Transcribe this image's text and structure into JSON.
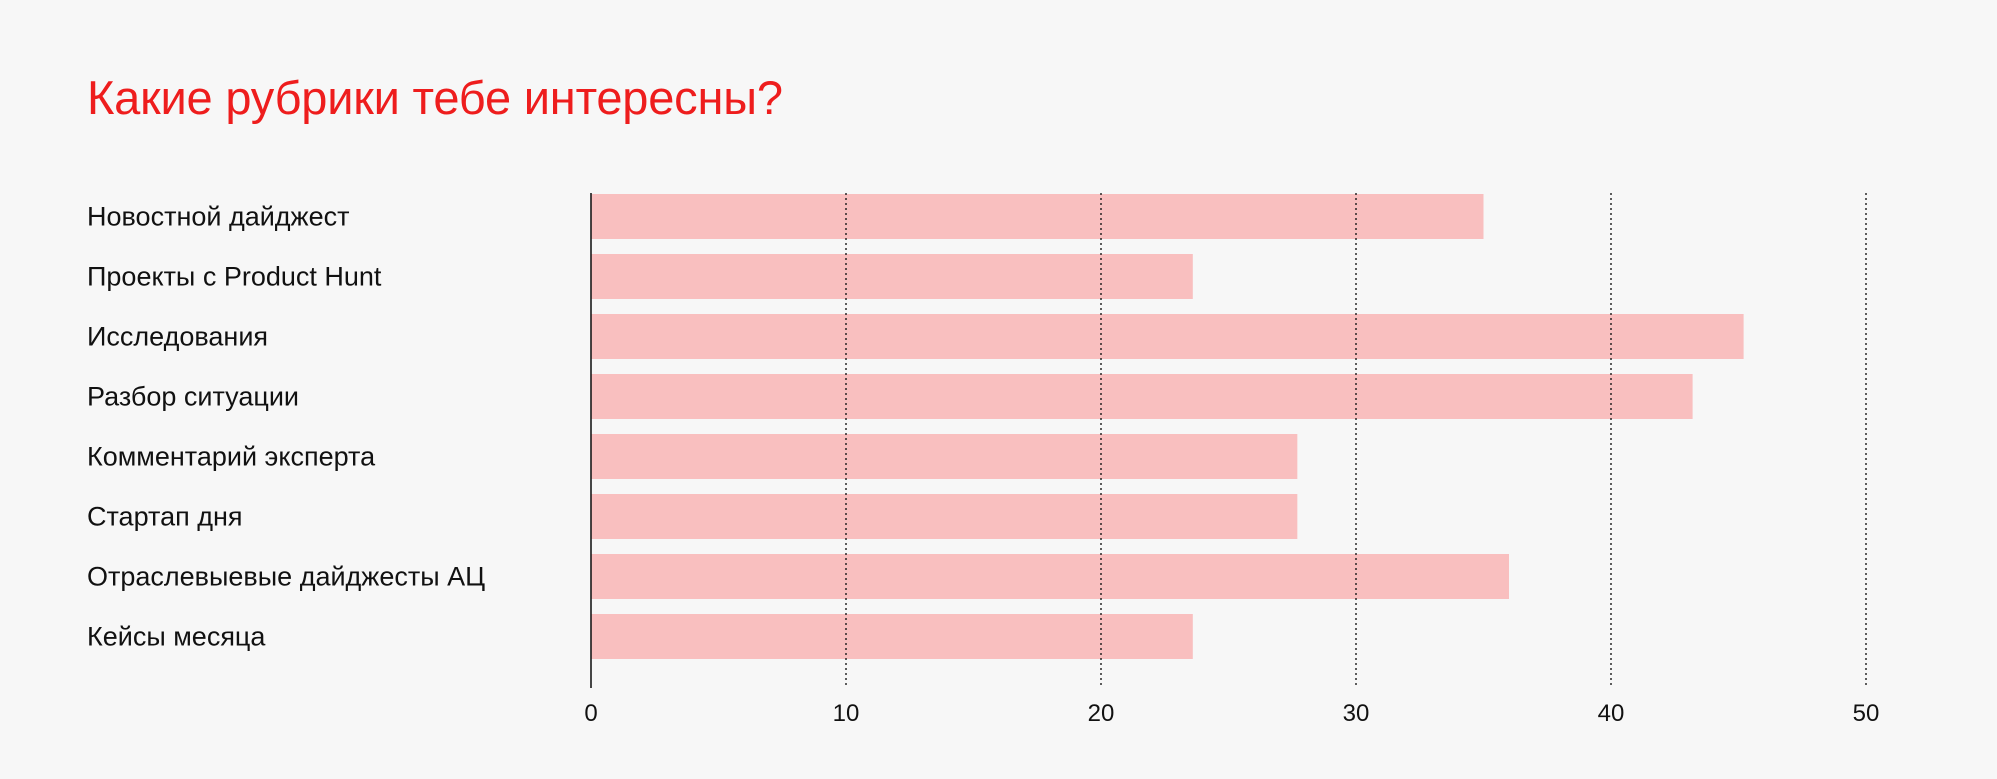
{
  "colors": {
    "background": "#f7f7f7",
    "title": "#ee1d1d",
    "bar": "#f9bfbf",
    "text": "#111111",
    "grid": "#1a1a1a"
  },
  "chart_data": {
    "type": "bar",
    "orientation": "horizontal",
    "title": "Какие рубрики тебе интересны?",
    "xlabel": "",
    "ylabel": "",
    "categories": [
      "Новостной дайджест",
      "Проекты с Product Hunt",
      "Исследования",
      "Разбор ситуации",
      "Комментарий эксперта",
      "Стартап дня",
      "Отраслевыевые дайджесты АЦ",
      "Кейсы месяца"
    ],
    "values": [
      35,
      23.6,
      45.2,
      43.2,
      27.7,
      27.7,
      36,
      23.6
    ],
    "xlim": [
      0,
      50
    ],
    "ticks": [
      "0",
      "10",
      "20",
      "30",
      "40",
      "50"
    ],
    "grid": "vertical dotted",
    "legend": "none"
  }
}
